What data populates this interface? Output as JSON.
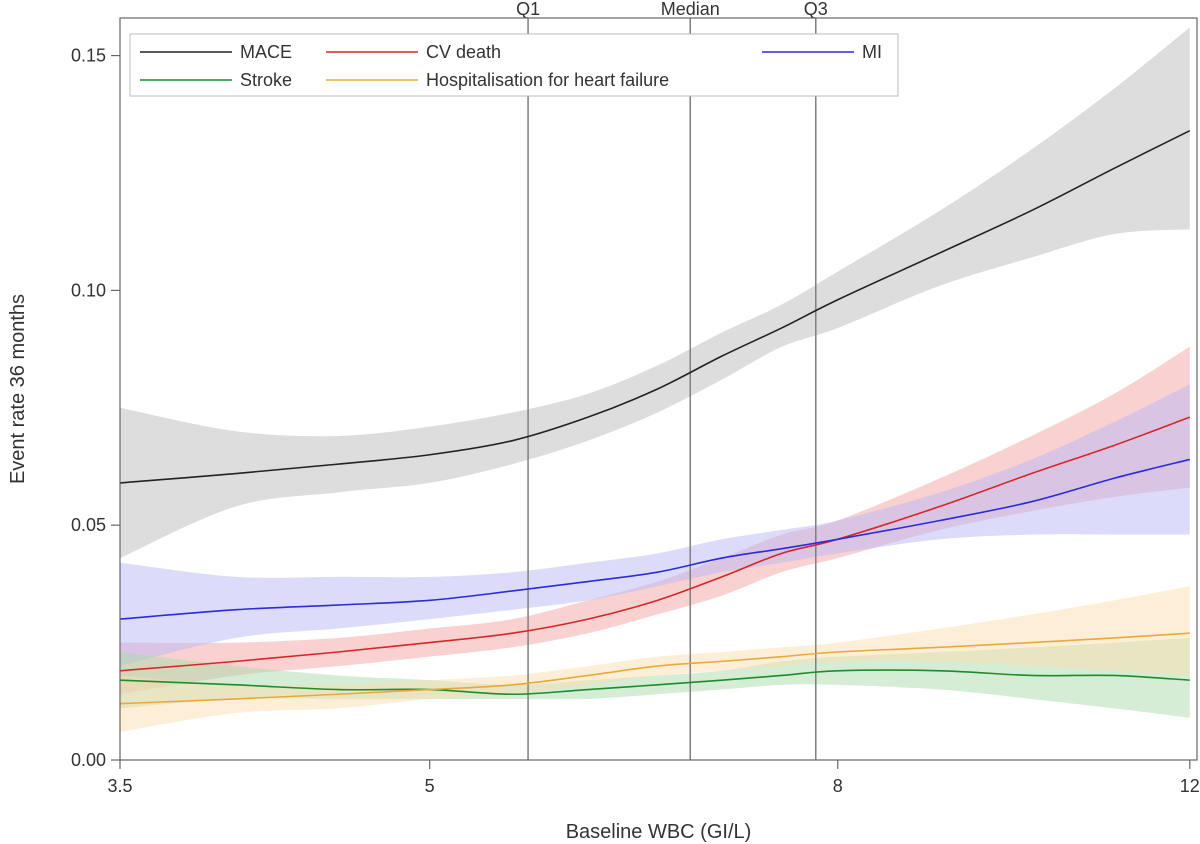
{
  "chart_data": {
    "type": "line",
    "title": "",
    "xlabel": "Baseline WBC (GI/L)",
    "ylabel": "Event rate 36 months",
    "x_scale": "log",
    "xlim": [
      3.5,
      12.1
    ],
    "ylim": [
      0.0,
      0.158
    ],
    "x_ticks": [
      {
        "value": 3.5,
        "label": "3.5"
      },
      {
        "value": 5,
        "label": "5"
      },
      {
        "value": 8,
        "label": "8"
      },
      {
        "value": 12,
        "label": "12"
      }
    ],
    "y_ticks": [
      {
        "value": 0.0,
        "label": "0.00"
      },
      {
        "value": 0.05,
        "label": "0.05"
      },
      {
        "value": 0.1,
        "label": "0.10"
      },
      {
        "value": 0.15,
        "label": "0.15"
      }
    ],
    "grid": false,
    "legend_position": "top",
    "reference_lines": [
      {
        "label": "Q1",
        "x": 5.6
      },
      {
        "label": "Median",
        "x": 6.75
      },
      {
        "label": "Q3",
        "x": 7.8
      }
    ],
    "x": [
      3.5,
      4.0,
      4.5,
      5.0,
      5.5,
      6.0,
      6.5,
      7.0,
      7.5,
      8.0,
      9.0,
      10.0,
      11.0,
      12.0
    ],
    "series": [
      {
        "name": "MACE",
        "color": "#222222",
        "band_color": "#bbbbbb",
        "values": [
          0.059,
          0.061,
          0.063,
          0.065,
          0.068,
          0.073,
          0.079,
          0.086,
          0.092,
          0.098,
          0.108,
          0.117,
          0.126,
          0.134
        ],
        "lower": [
          0.043,
          0.054,
          0.057,
          0.059,
          0.063,
          0.068,
          0.074,
          0.081,
          0.088,
          0.092,
          0.101,
          0.107,
          0.112,
          0.113
        ],
        "upper": [
          0.075,
          0.07,
          0.069,
          0.071,
          0.074,
          0.078,
          0.084,
          0.091,
          0.097,
          0.104,
          0.117,
          0.13,
          0.143,
          0.156
        ]
      },
      {
        "name": "CV death",
        "color": "#d62728",
        "band_color": "#f4a3a3",
        "values": [
          0.019,
          0.021,
          0.023,
          0.025,
          0.027,
          0.03,
          0.034,
          0.039,
          0.044,
          0.047,
          0.054,
          0.061,
          0.067,
          0.073
        ],
        "lower": [
          0.014,
          0.018,
          0.02,
          0.022,
          0.024,
          0.027,
          0.031,
          0.035,
          0.04,
          0.043,
          0.049,
          0.053,
          0.056,
          0.058
        ],
        "upper": [
          0.025,
          0.025,
          0.026,
          0.028,
          0.03,
          0.034,
          0.038,
          0.043,
          0.048,
          0.051,
          0.06,
          0.069,
          0.078,
          0.088
        ]
      },
      {
        "name": "MI",
        "color": "#2b2bd9",
        "band_color": "#b9b9f5",
        "values": [
          0.03,
          0.032,
          0.033,
          0.034,
          0.036,
          0.038,
          0.04,
          0.043,
          0.045,
          0.047,
          0.051,
          0.055,
          0.06,
          0.064
        ],
        "lower": [
          0.02,
          0.026,
          0.028,
          0.03,
          0.032,
          0.034,
          0.037,
          0.04,
          0.042,
          0.044,
          0.047,
          0.048,
          0.048,
          0.048
        ],
        "upper": [
          0.042,
          0.039,
          0.039,
          0.039,
          0.04,
          0.042,
          0.044,
          0.047,
          0.049,
          0.051,
          0.057,
          0.064,
          0.072,
          0.08
        ]
      },
      {
        "name": "Stroke",
        "color": "#1e8c2b",
        "band_color": "#a9dca9",
        "values": [
          0.017,
          0.016,
          0.015,
          0.015,
          0.014,
          0.015,
          0.016,
          0.017,
          0.018,
          0.019,
          0.019,
          0.018,
          0.018,
          0.017
        ],
        "lower": [
          0.011,
          0.013,
          0.013,
          0.013,
          0.013,
          0.013,
          0.014,
          0.015,
          0.016,
          0.016,
          0.015,
          0.013,
          0.011,
          0.009
        ],
        "upper": [
          0.023,
          0.02,
          0.018,
          0.017,
          0.016,
          0.017,
          0.018,
          0.019,
          0.021,
          0.022,
          0.023,
          0.024,
          0.025,
          0.026
        ]
      },
      {
        "name": "Hospitalisation for heart failure",
        "color": "#e8a93a",
        "band_color": "#fbe0b0",
        "values": [
          0.012,
          0.013,
          0.014,
          0.015,
          0.016,
          0.018,
          0.02,
          0.021,
          0.022,
          0.023,
          0.024,
          0.025,
          0.026,
          0.027
        ],
        "lower": [
          0.006,
          0.01,
          0.011,
          0.013,
          0.014,
          0.016,
          0.018,
          0.019,
          0.02,
          0.021,
          0.021,
          0.02,
          0.019,
          0.018
        ],
        "upper": [
          0.018,
          0.016,
          0.016,
          0.017,
          0.018,
          0.02,
          0.022,
          0.023,
          0.024,
          0.025,
          0.028,
          0.031,
          0.034,
          0.037
        ]
      }
    ],
    "legend_rows": [
      [
        "MACE",
        "CV death",
        "MI"
      ],
      [
        "Stroke",
        "Hospitalisation for heart failure"
      ]
    ]
  }
}
